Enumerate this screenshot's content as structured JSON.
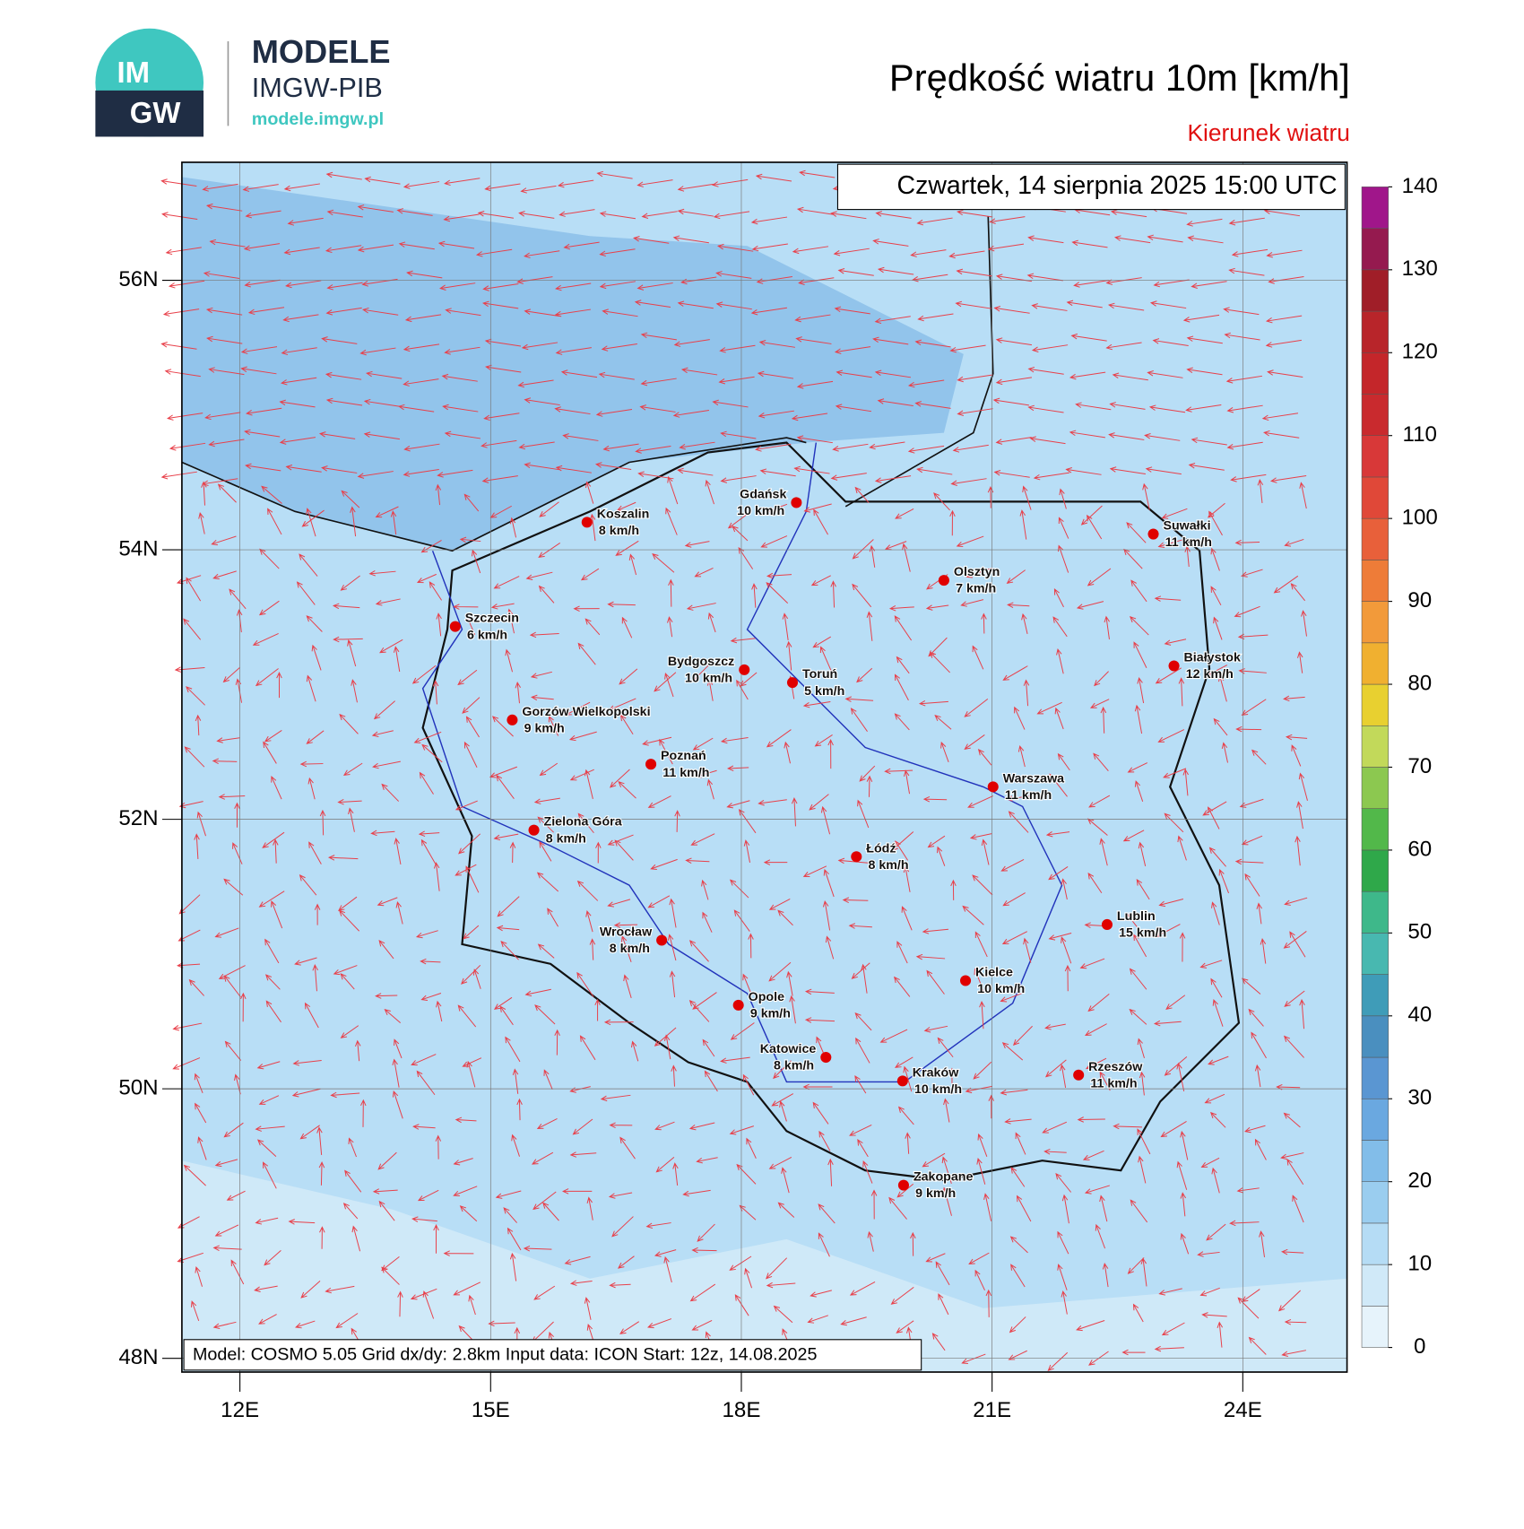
{
  "header": {
    "logo_top": "IM",
    "logo_bottom": "GW",
    "brand": "MODELE",
    "org": "IMGW-PIB",
    "url": "modele.imgw.pl"
  },
  "title": "Prędkość wiatru 10m [km/h]",
  "subtitle": "Kierunek wiatru",
  "timestamp": "Czwartek, 14 sierpnia 2025 15:00 UTC",
  "footer": "Model: COSMO 5.05  Grid dx/dy: 2.8km  Input data: ICON  Start: 12z, 14.08.2025",
  "map": {
    "lat_ticks": [
      {
        "value": 56,
        "label": "56N"
      },
      {
        "value": 54,
        "label": "54N"
      },
      {
        "value": 52,
        "label": "52N"
      },
      {
        "value": 50,
        "label": "50N"
      },
      {
        "value": 48,
        "label": "48N"
      }
    ],
    "lon_ticks": [
      {
        "value": 12,
        "label": "12E"
      },
      {
        "value": 15,
        "label": "15E"
      },
      {
        "value": 18,
        "label": "18E"
      },
      {
        "value": 21,
        "label": "21E"
      },
      {
        "value": 24,
        "label": "24E"
      }
    ],
    "cities": [
      {
        "name": "Koszalin",
        "speed": "8 km/h"
      },
      {
        "name": "Gdańsk",
        "speed": "10 km/h"
      },
      {
        "name": "Suwałki",
        "speed": "11 km/h"
      },
      {
        "name": "Olsztyn",
        "speed": "7 km/h"
      },
      {
        "name": "Szczecin",
        "speed": "6 km/h"
      },
      {
        "name": "Białystok",
        "speed": "12 km/h"
      },
      {
        "name": "Bydgoszcz",
        "speed": "10 km/h"
      },
      {
        "name": "Toruń",
        "speed": "5 km/h"
      },
      {
        "name": "Gorzów Wielkopolski",
        "speed": "9 km/h"
      },
      {
        "name": "Poznań",
        "speed": "11 km/h"
      },
      {
        "name": "Warszawa",
        "speed": "11 km/h"
      },
      {
        "name": "Zielona Góra",
        "speed": "8 km/h"
      },
      {
        "name": "Łódź",
        "speed": "8 km/h"
      },
      {
        "name": "Lublin",
        "speed": "15 km/h"
      },
      {
        "name": "Wrocław",
        "speed": "8 km/h"
      },
      {
        "name": "Kielce",
        "speed": "10 km/h"
      },
      {
        "name": "Opole",
        "speed": "9 km/h"
      },
      {
        "name": "Katowice",
        "speed": "8 km/h"
      },
      {
        "name": "Kraków",
        "speed": "10 km/h"
      },
      {
        "name": "Rzeszów",
        "speed": "11 km/h"
      },
      {
        "name": "Zakopane",
        "speed": "9 km/h"
      }
    ]
  },
  "colorbar": {
    "lim": [
      0,
      140
    ],
    "ticks": [
      0,
      10,
      20,
      30,
      40,
      50,
      60,
      70,
      80,
      90,
      100,
      110,
      120,
      130,
      140
    ],
    "colors": [
      "#e6f3fb",
      "#d0e9f8",
      "#b5dcf5",
      "#9acdef",
      "#82bde9",
      "#6aa8e0",
      "#5a96d2",
      "#4a8fbf",
      "#3f9cb8",
      "#48b8b0",
      "#3eb88a",
      "#2fa84a",
      "#52b84a",
      "#8cc850",
      "#c2d95a",
      "#e8d030",
      "#f0b030",
      "#f29a3a",
      "#ee7c38",
      "#e8603a",
      "#e04838",
      "#d83838",
      "#c92a2e",
      "#c4262a",
      "#b8252a",
      "#a01e28",
      "#951a4f",
      "#a0168a"
    ]
  }
}
